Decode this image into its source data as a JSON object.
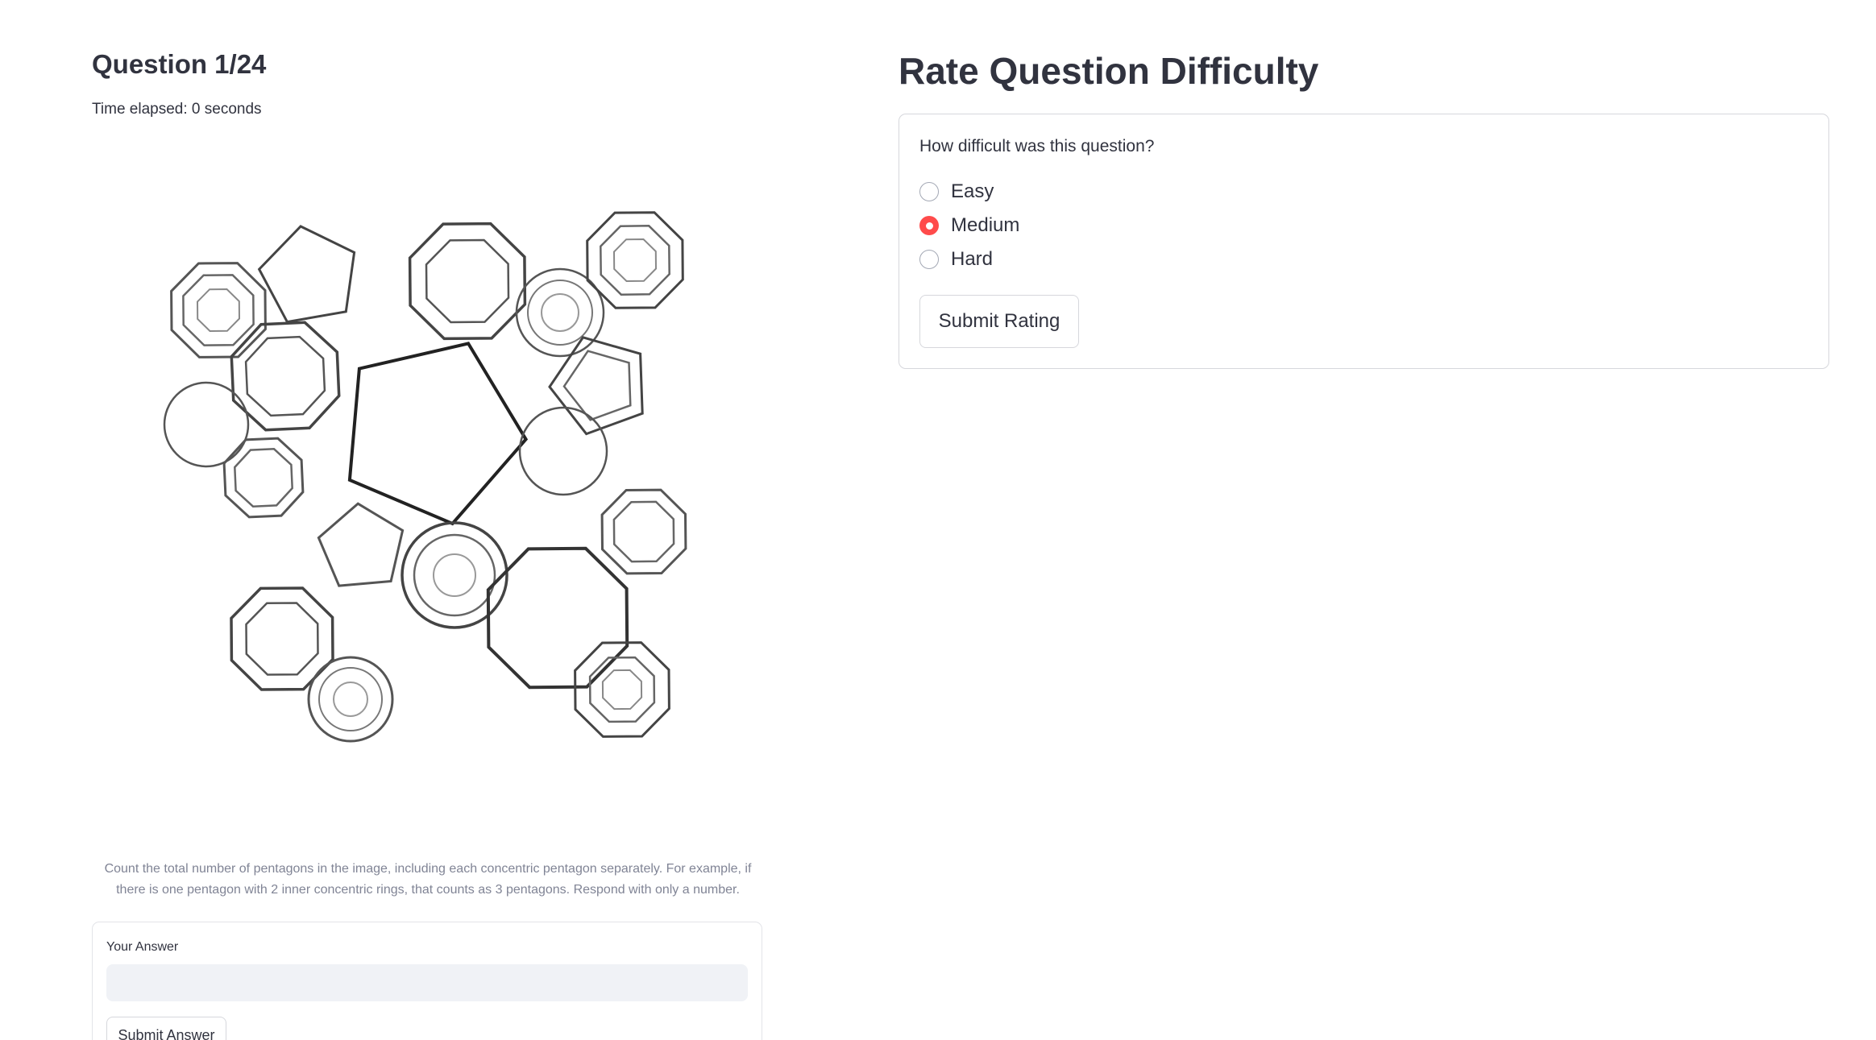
{
  "question": {
    "title": "Question 1/24",
    "timer": "Time elapsed: 0 seconds",
    "image_alt": "Overlapping pentagons, hexagons, octagons and circles puzzle",
    "instructions": "Count the total number of pentagons in the image, including each concentric pentagon separately. For example, if there is one pentagon with 2 inner concentric rings, that counts as 3 pentagons. Respond with only a number.",
    "answer_label": "Your Answer",
    "answer_value": "",
    "answer_placeholder": "",
    "submit_label": "Submit Answer"
  },
  "rating": {
    "title": "Rate Question Difficulty",
    "question": "How difficult was this question?",
    "options": [
      {
        "label": "Easy",
        "selected": false
      },
      {
        "label": "Medium",
        "selected": true
      },
      {
        "label": "Hard",
        "selected": false
      }
    ],
    "submit_label": "Submit Rating"
  },
  "colors": {
    "accent": "#ff4b4b",
    "text": "#31333f",
    "muted_text": "#808495",
    "input_bg": "#f0f2f6",
    "border": "#d6d7dc"
  }
}
